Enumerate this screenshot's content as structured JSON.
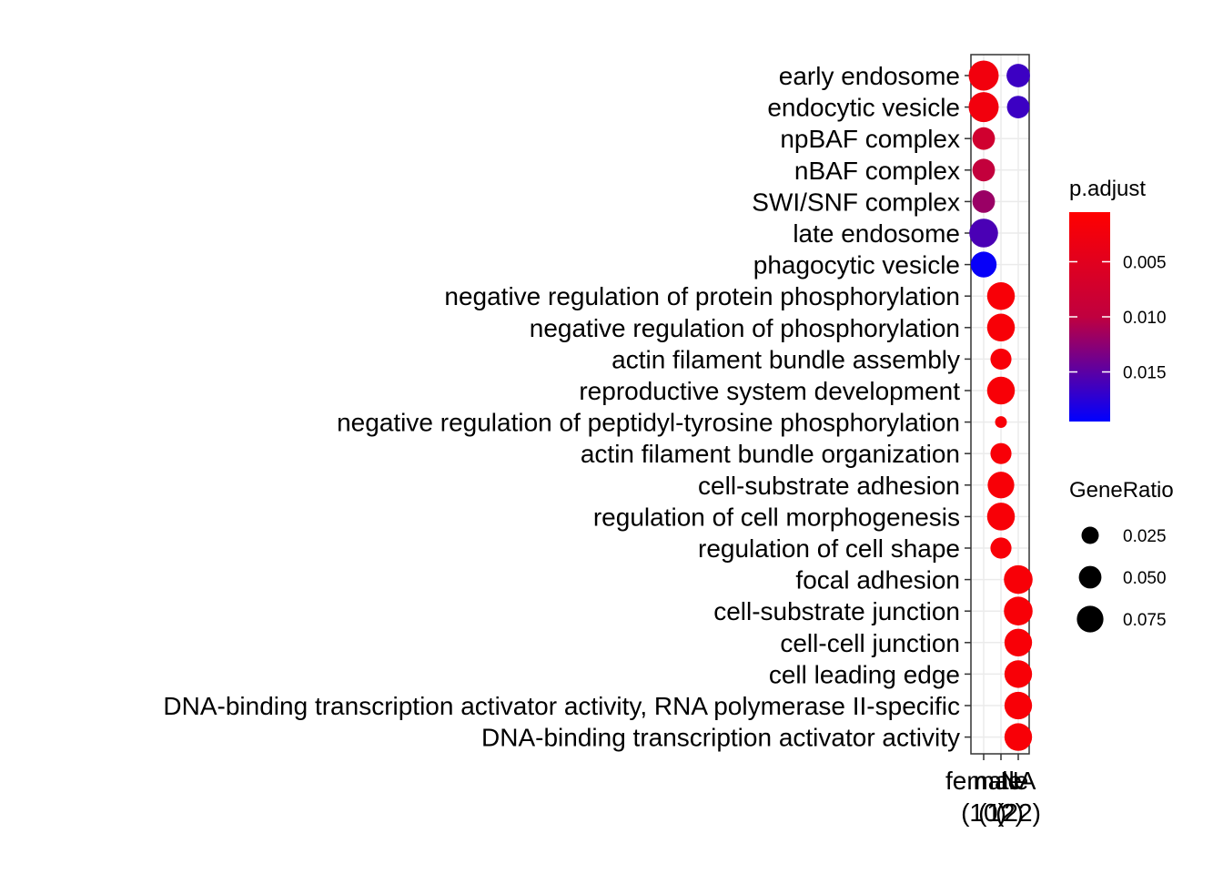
{
  "chart_data": {
    "type": "scatter",
    "title": "",
    "xlabel": "",
    "ylabel": "",
    "x_categories": [
      {
        "name": "female",
        "count": "(10)"
      },
      {
        "name": "male",
        "count": "(12)"
      },
      {
        "name": "NA",
        "count": "(22)"
      }
    ],
    "y_categories": [
      "early endosome",
      "endocytic vesicle",
      "npBAF complex",
      "nBAF complex",
      "SWI/SNF complex",
      "late endosome",
      "phagocytic vesicle",
      "negative regulation of protein phosphorylation",
      "negative regulation of phosphorylation",
      "actin filament bundle assembly",
      "reproductive system development",
      "negative regulation of peptidyl-tyrosine phosphorylation",
      "actin filament bundle organization",
      "cell-substrate adhesion",
      "regulation of cell morphogenesis",
      "regulation of cell shape",
      "focal adhesion",
      "cell-substrate junction",
      "cell-cell junction",
      "cell leading edge",
      "DNA-binding transcription activator activity, RNA polymerase II-specific",
      "DNA-binding transcription activator activity"
    ],
    "points": [
      {
        "x": "female",
        "y": "early endosome",
        "gene_ratio": 0.1,
        "p_adjust": 0.0015
      },
      {
        "x": "female",
        "y": "endocytic vesicle",
        "gene_ratio": 0.1,
        "p_adjust": 0.0015
      },
      {
        "x": "female",
        "y": "npBAF complex",
        "gene_ratio": 0.05,
        "p_adjust": 0.004
      },
      {
        "x": "female",
        "y": "nBAF complex",
        "gene_ratio": 0.05,
        "p_adjust": 0.005
      },
      {
        "x": "female",
        "y": "SWI/SNF complex",
        "gene_ratio": 0.05,
        "p_adjust": 0.008
      },
      {
        "x": "female",
        "y": "late endosome",
        "gene_ratio": 0.09,
        "p_adjust": 0.014
      },
      {
        "x": "female",
        "y": "phagocytic vesicle",
        "gene_ratio": 0.07,
        "p_adjust": 0.019
      },
      {
        "x": "male",
        "y": "negative regulation of protein phosphorylation",
        "gene_ratio": 0.083,
        "p_adjust": 0.001
      },
      {
        "x": "male",
        "y": "negative regulation of phosphorylation",
        "gene_ratio": 0.083,
        "p_adjust": 0.001
      },
      {
        "x": "male",
        "y": "actin filament bundle assembly",
        "gene_ratio": 0.042,
        "p_adjust": 0.001
      },
      {
        "x": "male",
        "y": "reproductive system development",
        "gene_ratio": 0.083,
        "p_adjust": 0.001
      },
      {
        "x": "male",
        "y": "negative regulation of peptidyl-tyrosine phosphorylation",
        "gene_ratio": 0.008,
        "p_adjust": 0.001
      },
      {
        "x": "male",
        "y": "actin filament bundle organization",
        "gene_ratio": 0.042,
        "p_adjust": 0.001
      },
      {
        "x": "male",
        "y": "cell-substrate adhesion",
        "gene_ratio": 0.075,
        "p_adjust": 0.001
      },
      {
        "x": "male",
        "y": "regulation of cell morphogenesis",
        "gene_ratio": 0.083,
        "p_adjust": 0.001
      },
      {
        "x": "male",
        "y": "regulation of cell shape",
        "gene_ratio": 0.042,
        "p_adjust": 0.001
      },
      {
        "x": "NA",
        "y": "early endosome",
        "gene_ratio": 0.055,
        "p_adjust": 0.015
      },
      {
        "x": "NA",
        "y": "endocytic vesicle",
        "gene_ratio": 0.05,
        "p_adjust": 0.015
      },
      {
        "x": "NA",
        "y": "focal adhesion",
        "gene_ratio": 0.09,
        "p_adjust": 0.001
      },
      {
        "x": "NA",
        "y": "cell-substrate junction",
        "gene_ratio": 0.09,
        "p_adjust": 0.001
      },
      {
        "x": "NA",
        "y": "cell-cell junction",
        "gene_ratio": 0.082,
        "p_adjust": 0.001
      },
      {
        "x": "NA",
        "y": "cell leading edge",
        "gene_ratio": 0.082,
        "p_adjust": 0.001
      },
      {
        "x": "NA",
        "y": "DNA-binding transcription activator activity, RNA polymerase II-specific",
        "gene_ratio": 0.082,
        "p_adjust": 0.001
      },
      {
        "x": "NA",
        "y": "DNA-binding transcription activator activity",
        "gene_ratio": 0.082,
        "p_adjust": 0.001
      }
    ],
    "color_legend": {
      "title": "p.adjust",
      "ticks": [
        0.005,
        0.01,
        0.015
      ],
      "tick_labels": [
        "0.005",
        "0.010",
        "0.015"
      ],
      "range": [
        0.0005,
        0.0195
      ],
      "low_color": "#ff0000",
      "high_color": "#0000ff"
    },
    "size_legend": {
      "title": "GeneRatio",
      "ticks": [
        0.025,
        0.05,
        0.075
      ],
      "tick_labels": [
        "0.025",
        "0.050",
        "0.075"
      ]
    },
    "grid": true,
    "legend_position": "right"
  }
}
